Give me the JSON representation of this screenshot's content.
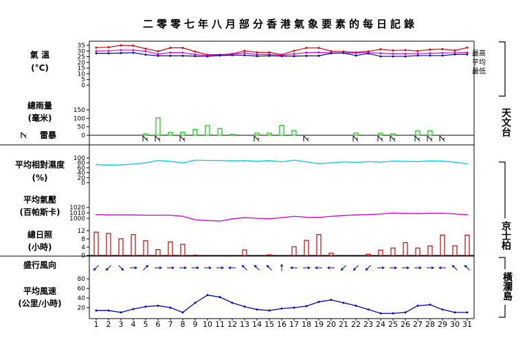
{
  "title": "二零零七年八月部分香港氣象要素的每日記錄",
  "labels": {
    "temp": [
      "氣 溫",
      "(°C)"
    ],
    "rain": [
      "總雨量",
      "(毫米)"
    ],
    "thunder": "雷暴",
    "rh": [
      "平均相對濕度",
      "(%)"
    ],
    "pres": [
      "平均氣壓",
      "(百帕斯卡)"
    ],
    "sun": [
      "總日照",
      "(小時)"
    ],
    "wdir": "盛行風向",
    "wspd": [
      "平均風速",
      "(公里/小時)"
    ]
  },
  "legend": {
    "max": "最高",
    "mean": "平均",
    "min": "最低"
  },
  "stations": {
    "hko": "天文台",
    "kp": "京士柏",
    "wgl": "橫瀾島"
  },
  "colors": {
    "max": "#e00000",
    "mean": "#e000e0",
    "min": "#0000c0",
    "rain": "#00cc00",
    "rh": "#00c8f0",
    "pres": "#d000d0",
    "sun": "#d00000",
    "wind": "#0000cc"
  },
  "chart_data": [
    {
      "type": "line",
      "name": "temperature",
      "x": [
        1,
        2,
        3,
        4,
        5,
        6,
        7,
        8,
        9,
        10,
        11,
        12,
        13,
        14,
        15,
        16,
        17,
        18,
        19,
        20,
        21,
        22,
        23,
        24,
        25,
        26,
        27,
        28,
        29,
        30,
        31
      ],
      "ylim": [
        0,
        35
      ],
      "yticks": [
        0,
        5,
        10,
        15,
        20,
        25,
        30,
        35
      ],
      "series": [
        {
          "name": "最高",
          "color": "max",
          "values": [
            33,
            33.3,
            35,
            34.7,
            32,
            29.8,
            32.8,
            32.8,
            29.5,
            26.8,
            26.8,
            27.5,
            30.2,
            28.8,
            28.8,
            26.8,
            30.2,
            32.7,
            32.7,
            29.8,
            29.5,
            28.8,
            29.7,
            31.5,
            30.5,
            30.8,
            30,
            31.3,
            31.7,
            30.5,
            33
          ]
        },
        {
          "name": "平均",
          "color": "mean",
          "values": [
            30,
            30.2,
            30.8,
            30.8,
            29.8,
            27.3,
            28.6,
            28.6,
            27,
            26,
            26.3,
            27,
            28.3,
            26.9,
            27,
            26.1,
            27.5,
            28.6,
            28.8,
            28.3,
            28.3,
            28.3,
            28.5,
            28,
            27.7,
            27.6,
            27.8,
            28,
            28.3,
            28.4,
            28.7
          ]
        },
        {
          "name": "最低",
          "color": "min",
          "values": [
            28,
            28,
            28.2,
            28.5,
            26.8,
            25.8,
            25.8,
            25.8,
            25.5,
            25.3,
            26,
            26.3,
            26.3,
            25.5,
            25.8,
            25.5,
            25.5,
            25.7,
            25.8,
            28,
            28.3,
            26,
            27.8,
            25.3,
            25.3,
            25.3,
            26,
            26,
            26,
            27,
            27
          ]
        }
      ]
    },
    {
      "type": "bar",
      "name": "rainfall",
      "x": [
        1,
        2,
        3,
        4,
        5,
        6,
        7,
        8,
        9,
        10,
        11,
        12,
        13,
        14,
        15,
        16,
        17,
        18,
        19,
        20,
        21,
        22,
        23,
        24,
        25,
        26,
        27,
        28,
        29,
        30,
        31
      ],
      "ylim": [
        0,
        150
      ],
      "yticks": [
        0,
        50,
        100,
        150
      ],
      "values": [
        0,
        0,
        0,
        0,
        8,
        103,
        17,
        18,
        35,
        57,
        40,
        5,
        0,
        13,
        13,
        58,
        28,
        0,
        0,
        0,
        0,
        13,
        0,
        12,
        8,
        0,
        25,
        27,
        0,
        0,
        0
      ]
    },
    {
      "type": "markers",
      "name": "thunderstorm",
      "days": [
        5,
        6,
        8,
        14,
        18,
        22,
        24,
        25,
        27,
        28,
        29
      ]
    },
    {
      "type": "line",
      "name": "relative_humidity",
      "x": [
        1,
        2,
        3,
        4,
        5,
        6,
        7,
        8,
        9,
        10,
        11,
        12,
        13,
        14,
        15,
        16,
        17,
        18,
        19,
        20,
        21,
        22,
        23,
        24,
        25,
        26,
        27,
        28,
        29,
        30,
        31
      ],
      "ylim": [
        0,
        100
      ],
      "yticks": [
        0,
        20,
        40,
        60,
        80,
        100
      ],
      "values": [
        73,
        71,
        72,
        75,
        80,
        90,
        86,
        80,
        91,
        90,
        90,
        88,
        89,
        86,
        89,
        84,
        91,
        84,
        77,
        80,
        84,
        82,
        85,
        83,
        87,
        86,
        85,
        88,
        87,
        83,
        76
      ]
    },
    {
      "type": "line",
      "name": "mean_pressure",
      "x": [
        1,
        2,
        3,
        4,
        5,
        6,
        7,
        8,
        9,
        10,
        11,
        12,
        13,
        14,
        15,
        16,
        17,
        18,
        19,
        20,
        21,
        22,
        23,
        24,
        25,
        26,
        27,
        28,
        29,
        30,
        31
      ],
      "ylim": [
        1000,
        1020
      ],
      "yticks": [
        1000,
        1010,
        1020
      ],
      "values": [
        1006.8,
        1006.2,
        1006.2,
        1006.2,
        1005.8,
        1005.8,
        1005.8,
        1003.7,
        997.5,
        996,
        995,
        999,
        1001.5,
        1000,
        999.3,
        1001.3,
        1003.6,
        1002,
        1001.7,
        1003.6,
        1005.4,
        1006.2,
        1006.8,
        1008,
        1009.7,
        1009,
        1008.7,
        1009.4,
        1009.4,
        1008,
        1006.5
      ]
    },
    {
      "type": "bar",
      "name": "sunshine",
      "x": [
        1,
        2,
        3,
        4,
        5,
        6,
        7,
        8,
        9,
        10,
        11,
        12,
        13,
        14,
        15,
        16,
        17,
        18,
        19,
        20,
        21,
        22,
        23,
        24,
        25,
        26,
        27,
        28,
        29,
        30,
        31
      ],
      "ylim": [
        0,
        12
      ],
      "yticks": [
        0,
        4,
        8,
        12
      ],
      "values": [
        11.3,
        10.7,
        8.1,
        10.1,
        7.1,
        2.8,
        6.6,
        5.4,
        0.2,
        0,
        0,
        0,
        2.7,
        0,
        0.3,
        0,
        4.2,
        7.3,
        10.1,
        1.1,
        0,
        0,
        0.6,
        2.6,
        3.6,
        6.2,
        3.6,
        4.6,
        9.9,
        4.7,
        9.9
      ]
    },
    {
      "type": "arrows",
      "name": "prevailing_wind_direction",
      "x": [
        1,
        2,
        3,
        4,
        5,
        6,
        7,
        8,
        9,
        10,
        11,
        12,
        13,
        14,
        15,
        16,
        17,
        18,
        19,
        20,
        21,
        22,
        23,
        24,
        25,
        26,
        27,
        28,
        29,
        30,
        31
      ],
      "directions_deg": [
        225,
        225,
        135,
        90,
        45,
        90,
        90,
        90,
        90,
        90,
        90,
        270,
        315,
        315,
        315,
        0,
        270,
        90,
        270,
        270,
        225,
        225,
        225,
        90,
        90,
        90,
        90,
        90,
        270,
        315,
        315
      ]
    },
    {
      "type": "line",
      "name": "mean_wind_speed",
      "x": [
        1,
        2,
        3,
        4,
        5,
        6,
        7,
        8,
        9,
        10,
        11,
        12,
        13,
        14,
        15,
        16,
        17,
        18,
        19,
        20,
        21,
        22,
        23,
        24,
        25,
        26,
        27,
        28,
        29,
        30,
        31
      ],
      "ylim": [
        0,
        80
      ],
      "yticks": [
        0,
        20,
        40,
        60,
        80
      ],
      "values": [
        14,
        14,
        10,
        17,
        22,
        24,
        20,
        10,
        30,
        46,
        42,
        30,
        22,
        16,
        14,
        18,
        20,
        23,
        32,
        36,
        30,
        24,
        16,
        8,
        8,
        10,
        24,
        26,
        16,
        10,
        10
      ]
    }
  ]
}
